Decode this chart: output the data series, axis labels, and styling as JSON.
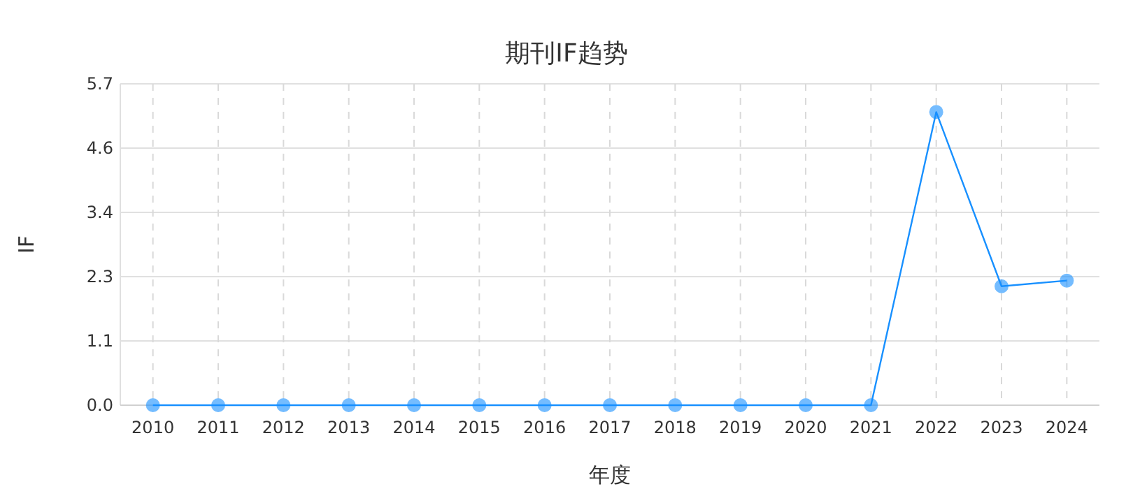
{
  "chart_data": {
    "type": "line",
    "title": "期刊IF趋势",
    "xlabel": "年度",
    "ylabel": "IF",
    "categories": [
      "2010",
      "2011",
      "2012",
      "2013",
      "2014",
      "2015",
      "2016",
      "2017",
      "2018",
      "2019",
      "2020",
      "2021",
      "2022",
      "2023",
      "2024"
    ],
    "series": [
      {
        "color": "#1890ff",
        "values": [
          0,
          0,
          0,
          0,
          0,
          0,
          0,
          0,
          0,
          0,
          0,
          0,
          5.2,
          2.11,
          2.21
        ]
      }
    ],
    "ylim": [
      0,
      5.7
    ],
    "yticks": [
      {
        "value": 0,
        "label": "0.0"
      },
      {
        "value": 1.14,
        "label": "1.1"
      },
      {
        "value": 2.28,
        "label": "2.3"
      },
      {
        "value": 3.42,
        "label": "3.4"
      },
      {
        "value": 4.56,
        "label": "4.6"
      },
      {
        "value": 5.7,
        "label": "5.7"
      }
    ],
    "grid": true,
    "marker": "circle",
    "line_style": "solid"
  }
}
